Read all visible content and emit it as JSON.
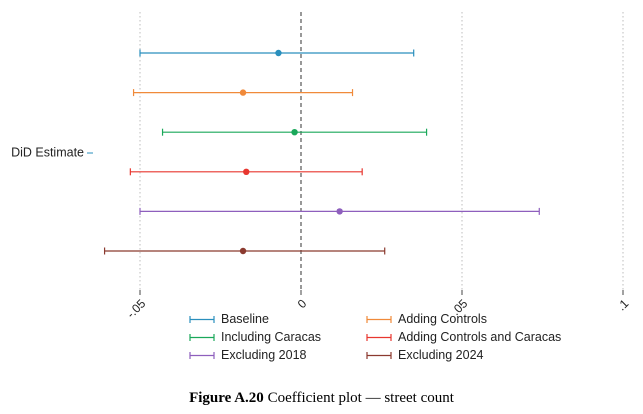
{
  "chart_data": {
    "type": "scatter",
    "title": "",
    "xlabel": "",
    "ylabel": "",
    "y_category_label": "DiD Estimate",
    "xlim": [
      -0.1,
      0.1
    ],
    "x_ticks": [
      {
        "value": -0.05,
        "label": "-.05"
      },
      {
        "value": 0,
        "label": "0"
      },
      {
        "value": 0.05,
        "label": ".05"
      },
      {
        "value": 0.1,
        "label": ".1"
      }
    ],
    "reference_line": 0,
    "grid": "vertical dotted",
    "legend_placement": "bottom",
    "series": [
      {
        "name": "Baseline",
        "estimate": -0.007,
        "ci": [
          -0.05,
          0.035
        ],
        "color": "#2a8fbd"
      },
      {
        "name": "Adding Controls",
        "estimate": -0.018,
        "ci": [
          -0.052,
          0.016
        ],
        "color": "#f08a3a"
      },
      {
        "name": "Including Caracas",
        "estimate": -0.002,
        "ci": [
          -0.043,
          0.039
        ],
        "color": "#1aa85a"
      },
      {
        "name": "Adding Controls and Caracas",
        "estimate": -0.017,
        "ci": [
          -0.053,
          0.019
        ],
        "color": "#e8362f"
      },
      {
        "name": "Excluding 2018",
        "estimate": 0.012,
        "ci": [
          -0.05,
          0.074
        ],
        "color": "#8e5fbd"
      },
      {
        "name": "Excluding 2024",
        "estimate": -0.018,
        "ci": [
          -0.061,
          0.026
        ],
        "color": "#8b3a2f"
      }
    ]
  },
  "caption": {
    "label": "Figure A.20",
    "text": "Coefficient plot — street count"
  }
}
